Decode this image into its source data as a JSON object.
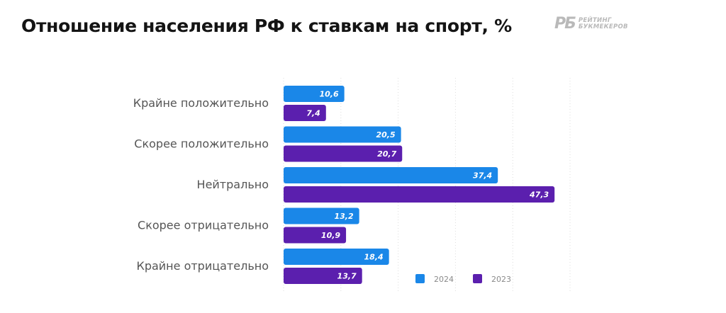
{
  "title": "Отношение населения РФ к ставкам на спорт, %",
  "logo": {
    "mark": "РБ",
    "line1": "РЕЙТИНГ",
    "line2": "БУКМЕКЕРОВ"
  },
  "colors": {
    "series_2024": "#1a87e8",
    "series_2023": "#5b1fae",
    "category_label": "#555555",
    "grid": "#dcdcdc"
  },
  "chart_data": {
    "type": "bar",
    "orientation": "horizontal",
    "title": "Отношение населения РФ к ставкам на спорт, %",
    "categories": [
      "Крайне положительно",
      "Скорее положительно",
      "Нейтрально",
      "Скорее отрицательно",
      "Крайне отрицательно"
    ],
    "series": [
      {
        "name": "2024",
        "values": [
          10.6,
          20.5,
          37.4,
          13.2,
          18.4
        ],
        "labels": [
          "10,6",
          "20,5",
          "37,4",
          "13,2",
          "18,4"
        ]
      },
      {
        "name": "2023",
        "values": [
          7.4,
          20.7,
          47.3,
          10.9,
          13.7
        ],
        "labels": [
          "7,4",
          "20,7",
          "47,3",
          "10,9",
          "13,7"
        ]
      }
    ],
    "xlim": [
      0,
      50
    ],
    "grid": "vertical dotted",
    "legend_position": "bottom-right"
  }
}
